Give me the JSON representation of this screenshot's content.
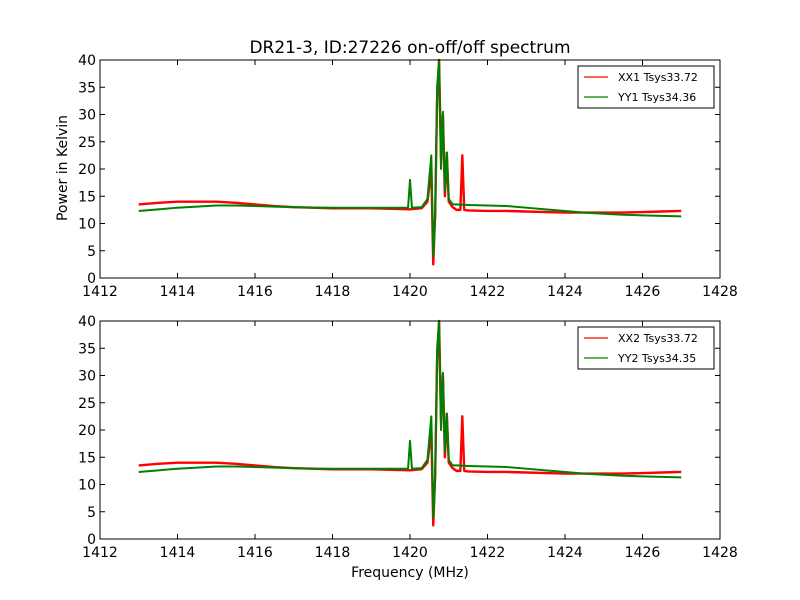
{
  "figure": {
    "title": "DR21-3, ID:27226 on-off/off spectrum",
    "xlabel": "Frequency (MHz)",
    "ylabel": "Power in Kelvin"
  },
  "chart_data": [
    {
      "type": "line",
      "title": "DR21-3, ID:27226 on-off/off spectrum",
      "xlabel": "",
      "ylabel": "Power in Kelvin",
      "xlim": [
        1412,
        1428
      ],
      "ylim": [
        0,
        40
      ],
      "xticks": [
        "1412",
        "1414",
        "1416",
        "1418",
        "1420",
        "1422",
        "1424",
        "1426",
        "1428"
      ],
      "yticks": [
        "0",
        "5",
        "10",
        "15",
        "20",
        "25",
        "30",
        "35",
        "40"
      ],
      "grid": false,
      "legend_position": "top-right",
      "series": [
        {
          "name": "XX1 Tsys33.72",
          "color": "#ff0000",
          "x": [
            1413.0,
            1413.5,
            1414.0,
            1414.5,
            1415.0,
            1415.5,
            1416.0,
            1416.5,
            1417.0,
            1417.5,
            1418.0,
            1418.5,
            1419.0,
            1419.5,
            1420.0,
            1420.3,
            1420.45,
            1420.55,
            1420.6,
            1420.65,
            1420.7,
            1420.75,
            1420.8,
            1420.85,
            1420.9,
            1420.95,
            1421.0,
            1421.1,
            1421.2,
            1421.3,
            1421.35,
            1421.4,
            1421.5,
            1422.0,
            1422.5,
            1423.0,
            1423.5,
            1424.0,
            1424.5,
            1425.0,
            1425.5,
            1426.0,
            1426.5,
            1427.0
          ],
          "y": [
            13.5,
            13.8,
            14.0,
            14.0,
            14.0,
            13.8,
            13.5,
            13.2,
            13.0,
            12.9,
            12.8,
            12.8,
            12.8,
            12.7,
            12.6,
            12.8,
            14.0,
            20.0,
            2.5,
            12.0,
            33.0,
            40.0,
            22.0,
            30.0,
            15.0,
            23.0,
            14.0,
            13.0,
            12.5,
            12.5,
            22.5,
            12.5,
            12.4,
            12.3,
            12.3,
            12.2,
            12.1,
            12.0,
            12.0,
            12.0,
            12.0,
            12.1,
            12.2,
            12.3
          ]
        },
        {
          "name": "YY1 Tsys34.36",
          "color": "#008000",
          "x": [
            1413.0,
            1413.5,
            1414.0,
            1414.5,
            1415.0,
            1415.5,
            1416.0,
            1416.5,
            1417.0,
            1417.5,
            1418.0,
            1418.5,
            1419.0,
            1419.5,
            1419.95,
            1420.0,
            1420.05,
            1420.3,
            1420.45,
            1420.55,
            1420.6,
            1420.65,
            1420.7,
            1420.75,
            1420.8,
            1420.85,
            1420.9,
            1420.95,
            1421.0,
            1421.1,
            1421.2,
            1421.5,
            1422.0,
            1422.5,
            1423.0,
            1423.5,
            1424.0,
            1424.5,
            1425.0,
            1425.5,
            1426.0,
            1426.5,
            1427.0
          ],
          "y": [
            12.3,
            12.6,
            12.9,
            13.1,
            13.3,
            13.3,
            13.2,
            13.1,
            13.0,
            12.9,
            12.9,
            12.9,
            12.9,
            12.9,
            12.9,
            18.0,
            12.9,
            13.0,
            14.5,
            22.5,
            4.0,
            11.0,
            35.0,
            40.0,
            20.0,
            30.5,
            16.0,
            23.0,
            14.5,
            13.5,
            13.5,
            13.4,
            13.3,
            13.2,
            12.9,
            12.6,
            12.3,
            12.0,
            11.8,
            11.6,
            11.5,
            11.4,
            11.3
          ]
        }
      ]
    },
    {
      "type": "line",
      "title": "",
      "xlabel": "Frequency (MHz)",
      "ylabel": "",
      "xlim": [
        1412,
        1428
      ],
      "ylim": [
        0,
        40
      ],
      "xticks": [
        "1412",
        "1414",
        "1416",
        "1418",
        "1420",
        "1422",
        "1424",
        "1426",
        "1428"
      ],
      "yticks": [
        "0",
        "5",
        "10",
        "15",
        "20",
        "25",
        "30",
        "35",
        "40"
      ],
      "grid": false,
      "legend_position": "top-right",
      "series": [
        {
          "name": "XX2 Tsys33.72",
          "color": "#ff0000",
          "x": [
            1413.0,
            1413.5,
            1414.0,
            1414.5,
            1415.0,
            1415.5,
            1416.0,
            1416.5,
            1417.0,
            1417.5,
            1418.0,
            1418.5,
            1419.0,
            1419.5,
            1420.0,
            1420.3,
            1420.45,
            1420.55,
            1420.6,
            1420.65,
            1420.7,
            1420.75,
            1420.8,
            1420.85,
            1420.9,
            1420.95,
            1421.0,
            1421.1,
            1421.2,
            1421.3,
            1421.35,
            1421.4,
            1421.5,
            1422.0,
            1422.5,
            1423.0,
            1423.5,
            1424.0,
            1424.5,
            1425.0,
            1425.5,
            1426.0,
            1426.5,
            1427.0
          ],
          "y": [
            13.5,
            13.8,
            14.0,
            14.0,
            14.0,
            13.8,
            13.5,
            13.2,
            13.0,
            12.9,
            12.8,
            12.8,
            12.8,
            12.7,
            12.6,
            12.8,
            14.0,
            20.0,
            2.5,
            12.0,
            33.0,
            40.0,
            22.0,
            30.0,
            15.0,
            23.0,
            14.0,
            13.0,
            12.5,
            12.5,
            22.5,
            12.5,
            12.4,
            12.3,
            12.3,
            12.2,
            12.1,
            12.0,
            12.0,
            12.0,
            12.0,
            12.1,
            12.2,
            12.3
          ]
        },
        {
          "name": "YY2 Tsys34.35",
          "color": "#008000",
          "x": [
            1413.0,
            1413.5,
            1414.0,
            1414.5,
            1415.0,
            1415.5,
            1416.0,
            1416.5,
            1417.0,
            1417.5,
            1418.0,
            1418.5,
            1419.0,
            1419.5,
            1419.95,
            1420.0,
            1420.05,
            1420.3,
            1420.45,
            1420.55,
            1420.6,
            1420.65,
            1420.7,
            1420.75,
            1420.8,
            1420.85,
            1420.9,
            1420.95,
            1421.0,
            1421.1,
            1421.2,
            1421.5,
            1422.0,
            1422.5,
            1423.0,
            1423.5,
            1424.0,
            1424.5,
            1425.0,
            1425.5,
            1426.0,
            1426.5,
            1427.0
          ],
          "y": [
            12.3,
            12.6,
            12.9,
            13.1,
            13.3,
            13.3,
            13.2,
            13.1,
            13.0,
            12.9,
            12.9,
            12.9,
            12.9,
            12.9,
            12.9,
            18.0,
            12.9,
            13.0,
            14.5,
            22.5,
            4.0,
            11.0,
            35.0,
            40.0,
            20.0,
            30.5,
            16.0,
            23.0,
            14.5,
            13.5,
            13.5,
            13.4,
            13.3,
            13.2,
            12.9,
            12.6,
            12.3,
            12.0,
            11.8,
            11.6,
            11.5,
            11.4,
            11.3
          ]
        }
      ]
    }
  ]
}
